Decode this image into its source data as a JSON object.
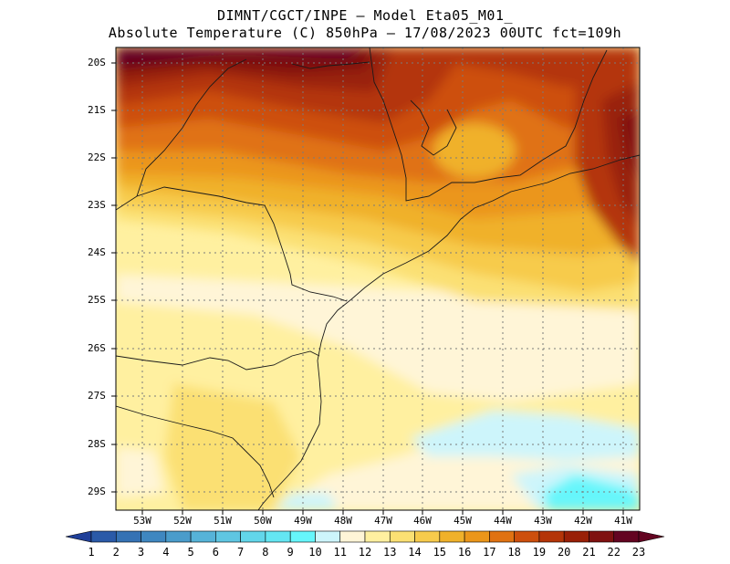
{
  "title": {
    "line1": "DIMNT/CGCT/INPE –  Model Eta05_M01_",
    "line2": "Absolute Temperature (C) 850hPa –  17/08/2023 00UTC fct=109h"
  },
  "map": {
    "lat_labels": [
      "20S",
      "21S",
      "22S",
      "23S",
      "24S",
      "25S",
      "26S",
      "27S",
      "28S",
      "29S"
    ],
    "lon_labels": [
      "53W",
      "52W",
      "51W",
      "50W",
      "49W",
      "48W",
      "47W",
      "46W",
      "45W",
      "44W",
      "43W",
      "42W",
      "41W"
    ]
  },
  "colorbar": {
    "labels": [
      "1",
      "2",
      "3",
      "4",
      "5",
      "6",
      "7",
      "8",
      "9",
      "10",
      "11",
      "12",
      "13",
      "14",
      "15",
      "16",
      "17",
      "18",
      "19",
      "20",
      "21",
      "22",
      "23"
    ],
    "colors": [
      "#1f3f99",
      "#2a5aa8",
      "#3572b4",
      "#3f87c0",
      "#4a9ccb",
      "#56b3d8",
      "#5fc6e2",
      "#62d6ea",
      "#64e6f2",
      "#66f6fb",
      "#cdf5fb",
      "#fff5d7",
      "#fff0a0",
      "#fbe073",
      "#f7cb4c",
      "#f0b12a",
      "#eb961a",
      "#e07212",
      "#cd4f0c",
      "#b43508",
      "#992007",
      "#7f1110",
      "#630421"
    ]
  }
}
